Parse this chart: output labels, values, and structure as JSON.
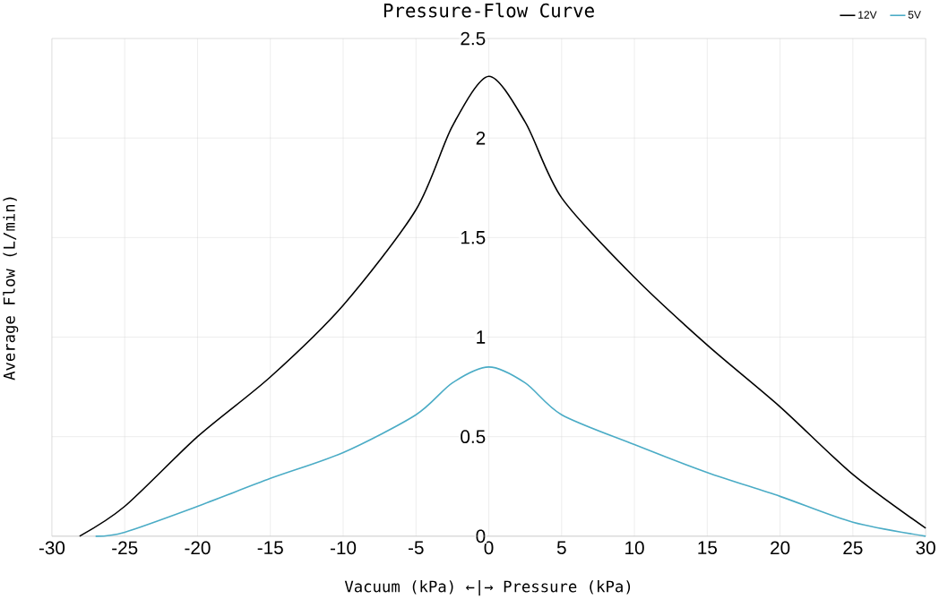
{
  "chart_data": {
    "type": "line",
    "title": "Pressure-Flow Curve",
    "ylabel": "Average Flow (L/min)",
    "xlabel": "Vacuum (kPa)  ←|→  Pressure (kPa)",
    "xlim": [
      -30,
      30
    ],
    "xticks": [
      -30,
      -25,
      -20,
      -15,
      -10,
      -5,
      0,
      5,
      10,
      15,
      20,
      25,
      30
    ],
    "ylim": [
      0,
      2.5
    ],
    "yticks": [
      0,
      0.5,
      1,
      1.5,
      2,
      2.5
    ],
    "grid": true,
    "legend": "top right",
    "marker": "none",
    "line_style": "solid",
    "series": [
      {
        "name": "12V",
        "color": "#000000",
        "x": [
          -28.1,
          -25,
          -20,
          -15,
          -10,
          -5,
          -2.5,
          0,
          2.5,
          5,
          10,
          15,
          20,
          25,
          30
        ],
        "values": [
          0,
          0.15,
          0.5,
          0.8,
          1.16,
          1.64,
          2.06,
          2.31,
          2.08,
          1.7,
          1.3,
          0.96,
          0.65,
          0.31,
          0.04
        ]
      },
      {
        "name": "5V",
        "color": "#4bacc6",
        "x": [
          -27,
          -25,
          -20,
          -15,
          -10,
          -5,
          -2.5,
          0,
          2.5,
          5,
          10,
          15,
          20,
          25,
          30
        ],
        "values": [
          0,
          0.02,
          0.15,
          0.29,
          0.42,
          0.61,
          0.77,
          0.85,
          0.77,
          0.61,
          0.46,
          0.32,
          0.2,
          0.07,
          0
        ]
      }
    ]
  }
}
